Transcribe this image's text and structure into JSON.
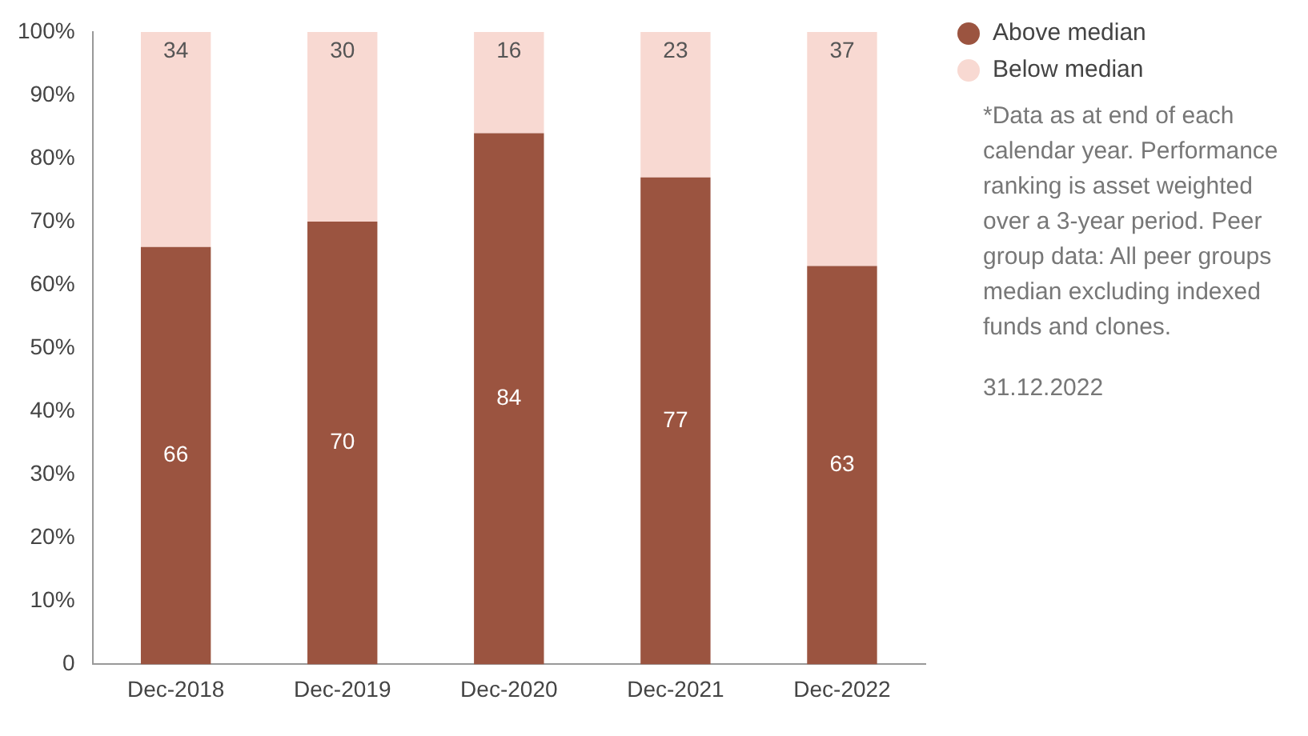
{
  "chart_data": {
    "type": "bar",
    "stacked": true,
    "categories": [
      "Dec-2018",
      "Dec-2019",
      "Dec-2020",
      "Dec-2021",
      "Dec-2022"
    ],
    "series": [
      {
        "name": "Above median",
        "color": "#9b5440",
        "values": [
          66,
          70,
          84,
          77,
          63
        ]
      },
      {
        "name": "Below median",
        "color": "#f8d9d2",
        "values": [
          34,
          30,
          16,
          23,
          37
        ]
      }
    ],
    "ylim": [
      0,
      100
    ],
    "yticks": [
      {
        "value": 0,
        "label": "0"
      },
      {
        "value": 10,
        "label": "10%"
      },
      {
        "value": 20,
        "label": "20%"
      },
      {
        "value": 30,
        "label": "30%"
      },
      {
        "value": 40,
        "label": "40%"
      },
      {
        "value": 50,
        "label": "50%"
      },
      {
        "value": 60,
        "label": "60%"
      },
      {
        "value": 70,
        "label": "70%"
      },
      {
        "value": 80,
        "label": "80%"
      },
      {
        "value": 90,
        "label": "90%"
      },
      {
        "value": 100,
        "label": "100%"
      }
    ],
    "data_labels": true,
    "legend": "top right",
    "grid": false,
    "annotations": [
      "*Data as at end of each calendar year. Performance ranking is asset weighted over a 3-year period. Peer group data: All peer groups median excluding indexed funds and clones.",
      "31.12.2022"
    ]
  }
}
